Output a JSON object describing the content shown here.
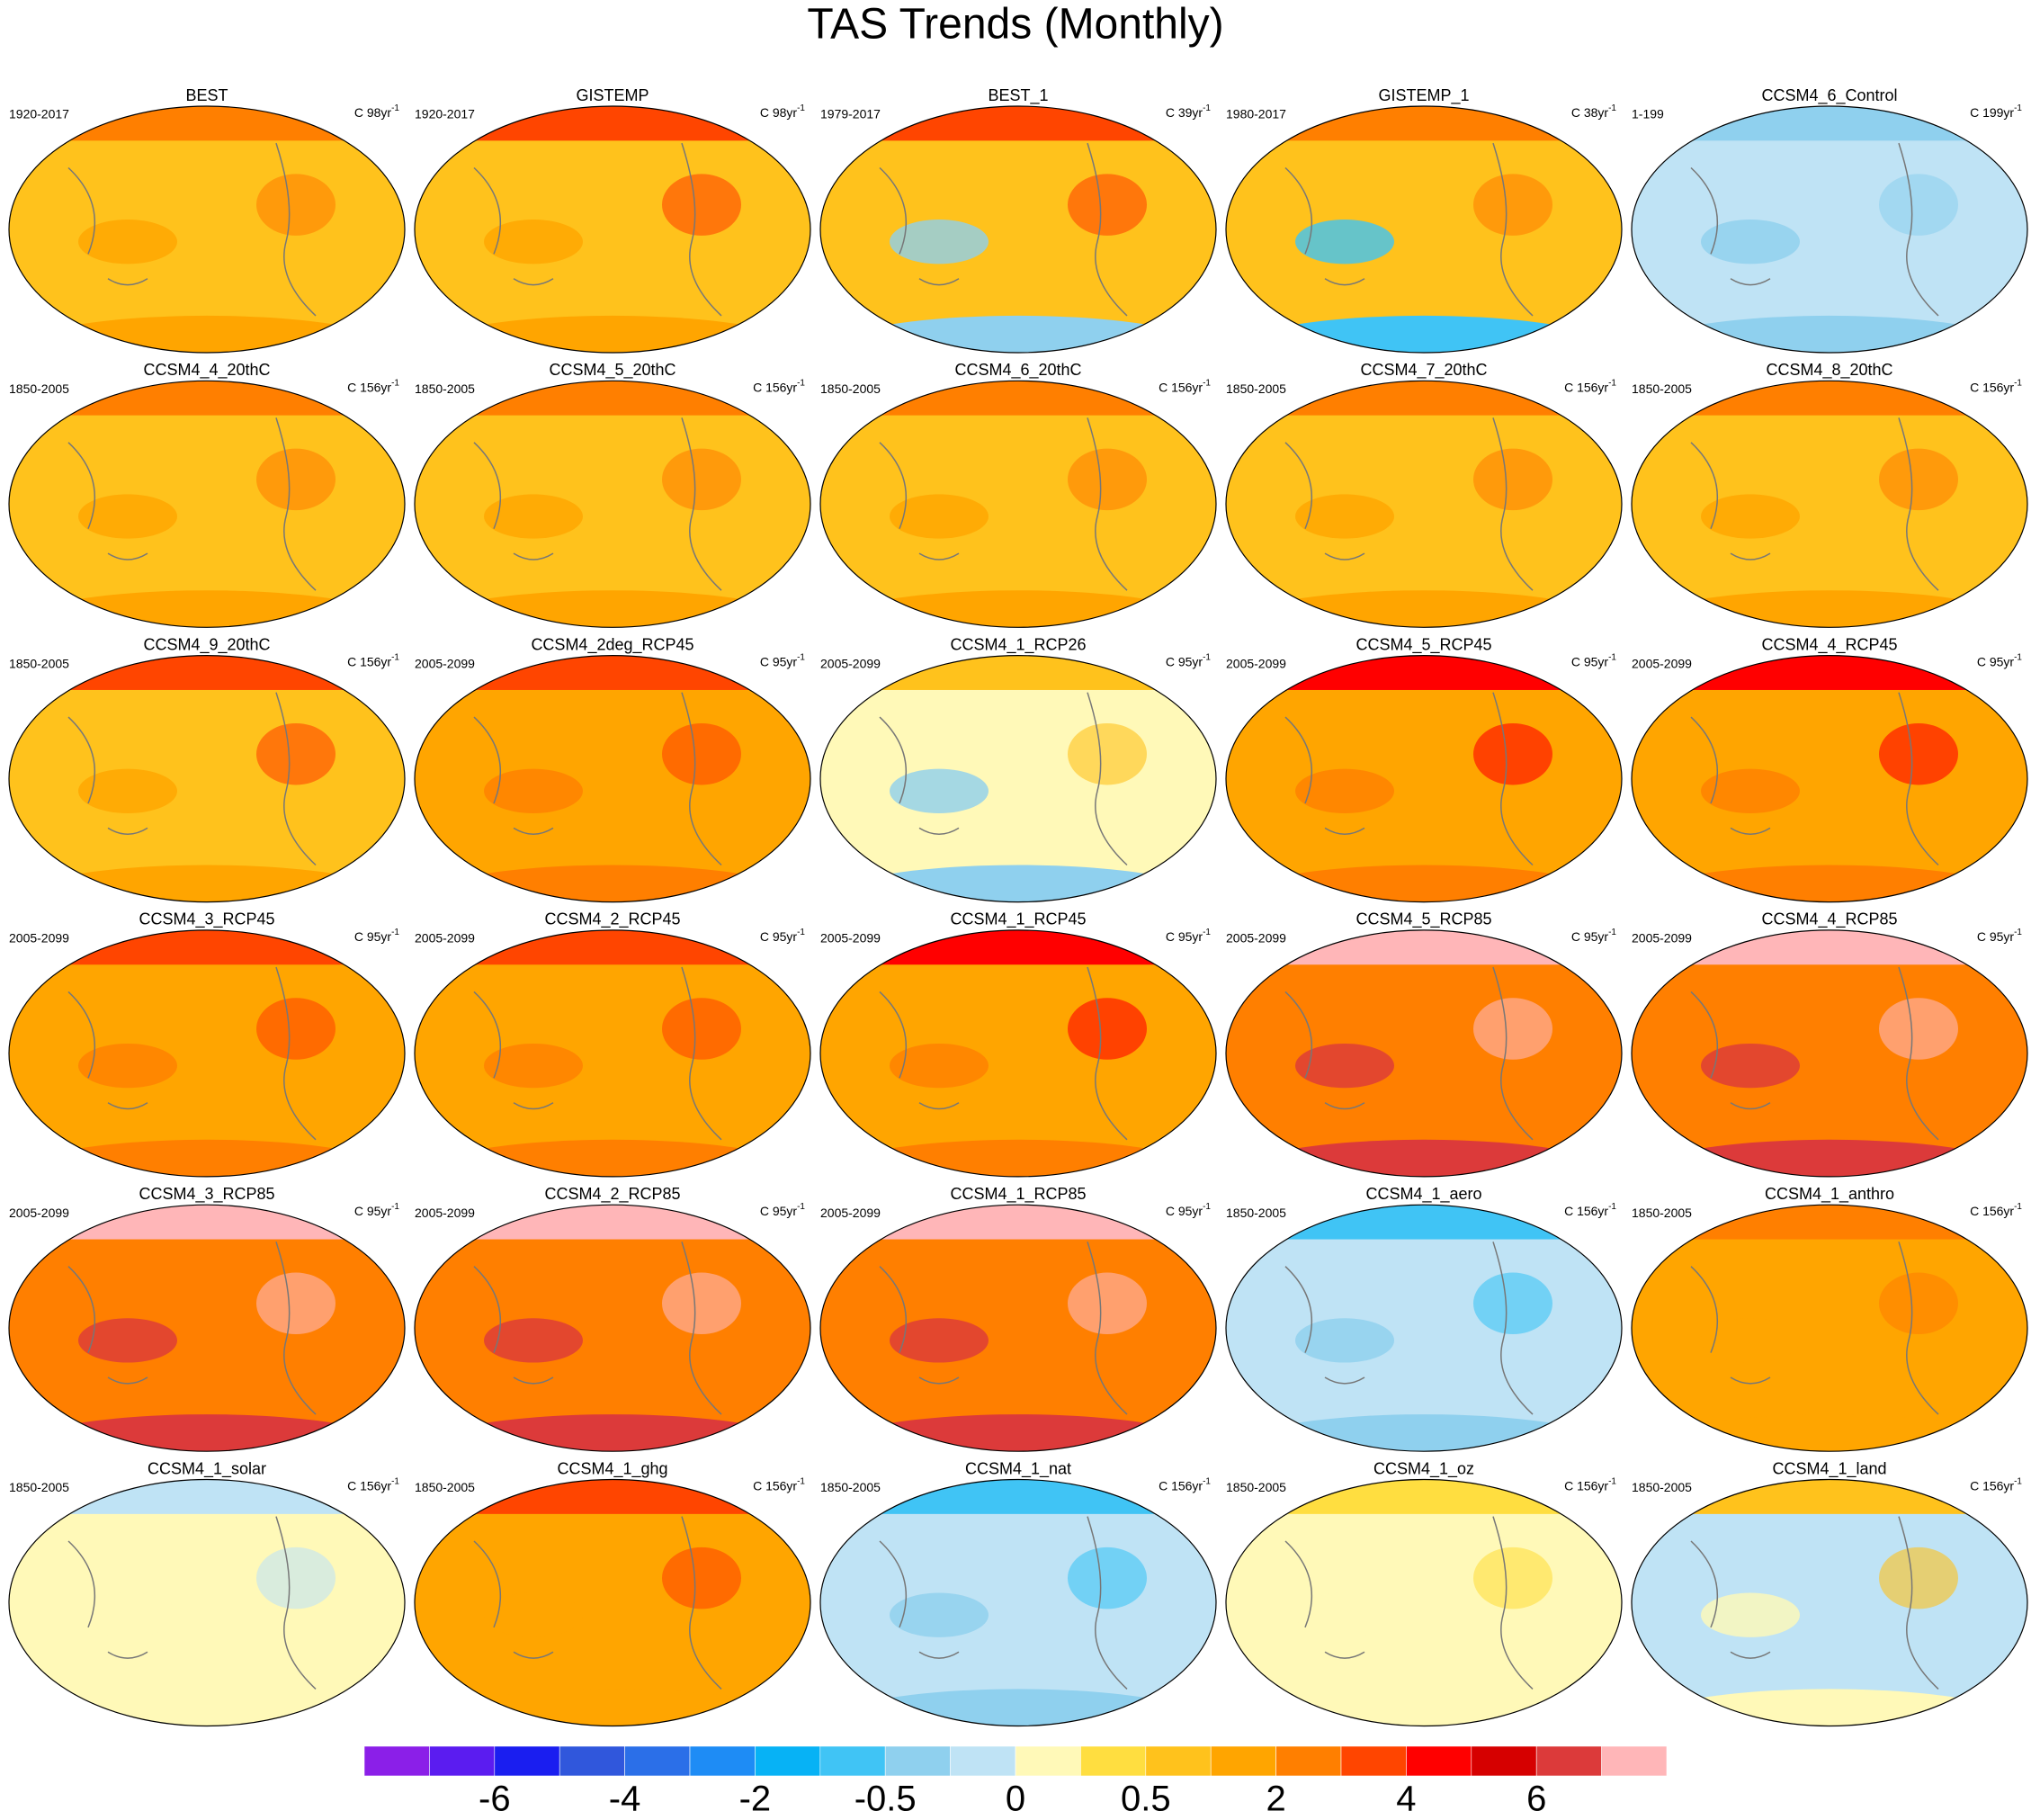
{
  "title": "TAS Trends (Monthly)",
  "panels": [
    {
      "name": "BEST",
      "period": "1920-2017",
      "trend": "C 98yr",
      "exp": "-1",
      "fill": [
        "#ff7f00",
        "#ffc21c",
        "#ffa500"
      ]
    },
    {
      "name": "GISTEMP",
      "period": "1920-2017",
      "trend": "C 98yr",
      "exp": "-1",
      "fill": [
        "#ff4500",
        "#ffc21c",
        "#ffa500"
      ]
    },
    {
      "name": "BEST_1",
      "period": "1979-2017",
      "trend": "C 39yr",
      "exp": "-1",
      "fill": [
        "#ff4500",
        "#ffc21c",
        "#8fd0ee"
      ]
    },
    {
      "name": "GISTEMP_1",
      "period": "1980-2017",
      "trend": "C 38yr",
      "exp": "-1",
      "fill": [
        "#ff7f00",
        "#ffc21c",
        "#40c4f5"
      ]
    },
    {
      "name": "CCSM4_6_Control",
      "period": "1-199",
      "trend": "C 199yr",
      "exp": "-1",
      "fill": [
        "#8fd0ee",
        "#bfe3f5",
        "#8fd0ee"
      ]
    },
    {
      "name": "CCSM4_4_20thC",
      "period": "1850-2005",
      "trend": "C 156yr",
      "exp": "-1",
      "fill": [
        "#ff7f00",
        "#ffc21c",
        "#ffa500"
      ]
    },
    {
      "name": "CCSM4_5_20thC",
      "period": "1850-2005",
      "trend": "C 156yr",
      "exp": "-1",
      "fill": [
        "#ff7f00",
        "#ffc21c",
        "#ffa500"
      ]
    },
    {
      "name": "CCSM4_6_20thC",
      "period": "1850-2005",
      "trend": "C 156yr",
      "exp": "-1",
      "fill": [
        "#ff7f00",
        "#ffc21c",
        "#ffa500"
      ]
    },
    {
      "name": "CCSM4_7_20thC",
      "period": "1850-2005",
      "trend": "C 156yr",
      "exp": "-1",
      "fill": [
        "#ff7f00",
        "#ffc21c",
        "#ffa500"
      ]
    },
    {
      "name": "CCSM4_8_20thC",
      "period": "1850-2005",
      "trend": "C 156yr",
      "exp": "-1",
      "fill": [
        "#ff7f00",
        "#ffc21c",
        "#ffa500"
      ]
    },
    {
      "name": "CCSM4_9_20thC",
      "period": "1850-2005",
      "trend": "C 156yr",
      "exp": "-1",
      "fill": [
        "#ff4500",
        "#ffc21c",
        "#ffa500"
      ]
    },
    {
      "name": "CCSM4_2deg_RCP45",
      "period": "2005-2099",
      "trend": "C 95yr",
      "exp": "-1",
      "fill": [
        "#ff4500",
        "#ffa500",
        "#ff7f00"
      ]
    },
    {
      "name": "CCSM4_1_RCP26",
      "period": "2005-2099",
      "trend": "C 95yr",
      "exp": "-1",
      "fill": [
        "#ffc21c",
        "#fff9b8",
        "#8fd0ee"
      ]
    },
    {
      "name": "CCSM4_5_RCP45",
      "period": "2005-2099",
      "trend": "C 95yr",
      "exp": "-1",
      "fill": [
        "#ff0000",
        "#ffa500",
        "#ff7f00"
      ]
    },
    {
      "name": "CCSM4_4_RCP45",
      "period": "2005-2099",
      "trend": "C 95yr",
      "exp": "-1",
      "fill": [
        "#ff0000",
        "#ffa500",
        "#ff7f00"
      ]
    },
    {
      "name": "CCSM4_3_RCP45",
      "period": "2005-2099",
      "trend": "C 95yr",
      "exp": "-1",
      "fill": [
        "#ff4500",
        "#ffa500",
        "#ff7f00"
      ]
    },
    {
      "name": "CCSM4_2_RCP45",
      "period": "2005-2099",
      "trend": "C 95yr",
      "exp": "-1",
      "fill": [
        "#ff4500",
        "#ffa500",
        "#ff7f00"
      ]
    },
    {
      "name": "CCSM4_1_RCP45",
      "period": "2005-2099",
      "trend": "C 95yr",
      "exp": "-1",
      "fill": [
        "#ff0000",
        "#ffa500",
        "#ff7f00"
      ]
    },
    {
      "name": "CCSM4_5_RCP85",
      "period": "2005-2099",
      "trend": "C 95yr",
      "exp": "-1",
      "fill": [
        "#ffb6b8",
        "#ff7f00",
        "#dc3a3a"
      ]
    },
    {
      "name": "CCSM4_4_RCP85",
      "period": "2005-2099",
      "trend": "C 95yr",
      "exp": "-1",
      "fill": [
        "#ffb6b8",
        "#ff7f00",
        "#dc3a3a"
      ]
    },
    {
      "name": "CCSM4_3_RCP85",
      "period": "2005-2099",
      "trend": "C 95yr",
      "exp": "-1",
      "fill": [
        "#ffb6b8",
        "#ff7f00",
        "#dc3a3a"
      ]
    },
    {
      "name": "CCSM4_2_RCP85",
      "period": "2005-2099",
      "trend": "C 95yr",
      "exp": "-1",
      "fill": [
        "#ffb6b8",
        "#ff7f00",
        "#dc3a3a"
      ]
    },
    {
      "name": "CCSM4_1_RCP85",
      "period": "2005-2099",
      "trend": "C 95yr",
      "exp": "-1",
      "fill": [
        "#ffb6b8",
        "#ff7f00",
        "#dc3a3a"
      ]
    },
    {
      "name": "CCSM4_1_aero",
      "period": "1850-2005",
      "trend": "C 156yr",
      "exp": "-1",
      "fill": [
        "#40c4f5",
        "#bfe3f5",
        "#8fd0ee"
      ]
    },
    {
      "name": "CCSM4_1_anthro",
      "period": "1850-2005",
      "trend": "C 156yr",
      "exp": "-1",
      "fill": [
        "#ff7f00",
        "#ffa500",
        "#ffa500"
      ]
    },
    {
      "name": "CCSM4_1_solar",
      "period": "1850-2005",
      "trend": "C 156yr",
      "exp": "-1",
      "fill": [
        "#bfe3f5",
        "#fff9b8",
        "#fff9b8"
      ]
    },
    {
      "name": "CCSM4_1_ghg",
      "period": "1850-2005",
      "trend": "C 156yr",
      "exp": "-1",
      "fill": [
        "#ff4500",
        "#ffa500",
        "#ffa500"
      ]
    },
    {
      "name": "CCSM4_1_nat",
      "period": "1850-2005",
      "trend": "C 156yr",
      "exp": "-1",
      "fill": [
        "#40c4f5",
        "#bfe3f5",
        "#8fd0ee"
      ]
    },
    {
      "name": "CCSM4_1_oz",
      "period": "1850-2005",
      "trend": "C 156yr",
      "exp": "-1",
      "fill": [
        "#ffde40",
        "#fff9b8",
        "#fff9b8"
      ]
    },
    {
      "name": "CCSM4_1_land",
      "period": "1850-2005",
      "trend": "C 156yr",
      "exp": "-1",
      "fill": [
        "#ffc21c",
        "#bfe3f5",
        "#fff9b8"
      ]
    }
  ],
  "colorbar": {
    "colors": [
      "#8b1fe8",
      "#5b1cf0",
      "#1a1ef0",
      "#3057dc",
      "#2b6fe8",
      "#1e8cf5",
      "#07b2f5",
      "#40c4f5",
      "#8fd0ee",
      "#bfe3f5",
      "#fff9b8",
      "#ffde40",
      "#ffc21c",
      "#ffa500",
      "#ff7f00",
      "#ff4500",
      "#ff0000",
      "#d60000",
      "#dc3a3a",
      "#ffb6b8"
    ],
    "ticks": [
      -6,
      -4,
      -2,
      -0.5,
      0,
      0.5,
      2,
      4,
      6
    ]
  }
}
